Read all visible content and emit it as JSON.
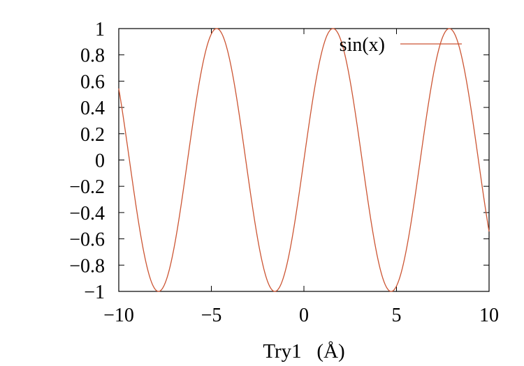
{
  "chart_data": {
    "type": "line",
    "title": "",
    "xlabel": "Try1   (Å)",
    "ylabel": "",
    "xlim": [
      -10,
      10
    ],
    "ylim": [
      -1,
      1
    ],
    "x_ticks": [
      -10,
      -5,
      0,
      5,
      10
    ],
    "x_tick_labels": [
      "−10",
      "−5",
      "0",
      "5",
      "10"
    ],
    "y_ticks": [
      1,
      0.8,
      0.6,
      0.4,
      0.2,
      0,
      -0.2,
      -0.4,
      -0.6,
      -0.8,
      -1
    ],
    "y_tick_labels": [
      "1",
      "0.8",
      "0.6",
      "0.4",
      "0.2",
      "0",
      "−0.2",
      "−0.4",
      "−0.6",
      "−0.8",
      "−1"
    ],
    "grid": false,
    "legend_position": "top-right",
    "series": [
      {
        "name": "sin(x)",
        "function": "sin(x)",
        "color": "#cc5533"
      }
    ]
  }
}
